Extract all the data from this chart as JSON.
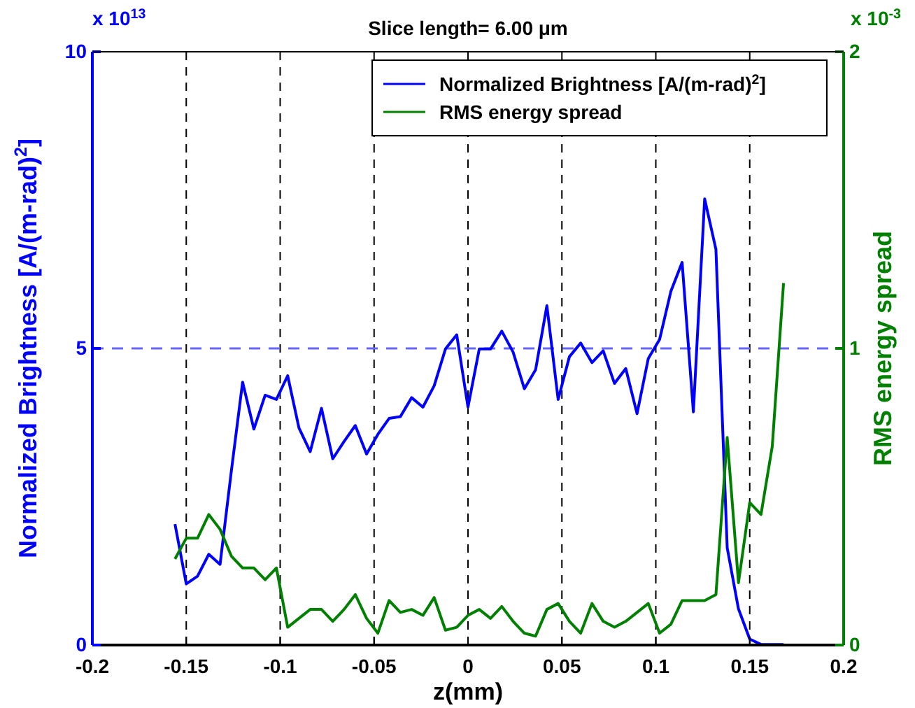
{
  "chart_data": {
    "type": "line",
    "title": "Slice length=  6.00 μm",
    "xlabel": "z(mm)",
    "ylabel": "Normalized Brightness [A/(m-rad)$^{2}$]",
    "y2label": "RMS energy spread",
    "annotations": [
      "x 10$^{13}$",
      "x 10$^{-3}$"
    ],
    "x": [
      -0.156,
      -0.15,
      -0.144,
      -0.138,
      -0.132,
      -0.126,
      -0.12,
      -0.114,
      -0.108,
      -0.102,
      -0.096,
      -0.09,
      -0.084,
      -0.078,
      -0.072,
      -0.066,
      -0.06,
      -0.054,
      -0.048,
      -0.042,
      -0.036,
      -0.03,
      -0.024,
      -0.018,
      -0.012,
      -0.006,
      0,
      0.006,
      0.012,
      0.018,
      0.024,
      0.03,
      0.036,
      0.042,
      0.048,
      0.054,
      0.06,
      0.066,
      0.072,
      0.078,
      0.084,
      0.09,
      0.096,
      0.102,
      0.108,
      0.114,
      0.12,
      0.126,
      0.132,
      0.138,
      0.144,
      0.15,
      0.156,
      0.162,
      0.168
    ],
    "series": [
      {
        "name": "Normalized Brightness [A/(m-rad)$^{2}$]",
        "color": "#0000ff",
        "values": [
          2.04,
          1.03,
          1.16,
          1.53,
          1.36,
          2.93,
          4.43,
          3.64,
          4.21,
          4.14,
          4.54,
          3.66,
          3.26,
          3.99,
          3.14,
          3.43,
          3.7,
          3.22,
          3.55,
          3.82,
          3.85,
          4.17,
          4.01,
          4.37,
          4.99,
          5.23,
          4.01,
          4.99,
          4.99,
          5.29,
          4.94,
          4.32,
          4.64,
          5.72,
          4.14,
          4.86,
          5.09,
          4.76,
          4.96,
          4.41,
          4.66,
          3.9,
          4.83,
          5.15,
          5.96,
          6.45,
          3.93,
          7.52,
          6.67,
          1.64,
          0.61,
          0.1,
          0.01,
          0.01,
          0.01
        ]
      },
      {
        "name": "RMS energy spread",
        "color": "#008000",
        "axis": "y2",
        "values": [
          0.29,
          0.36,
          0.36,
          0.44,
          0.39,
          0.3,
          0.26,
          0.26,
          0.22,
          0.26,
          0.06,
          0.09,
          0.12,
          0.12,
          0.08,
          0.12,
          0.17,
          0.09,
          0.04,
          0.15,
          0.11,
          0.12,
          0.1,
          0.16,
          0.05,
          0.06,
          0.1,
          0.12,
          0.09,
          0.13,
          0.08,
          0.04,
          0.03,
          0.12,
          0.14,
          0.08,
          0.04,
          0.14,
          0.08,
          0.06,
          0.08,
          0.11,
          0.14,
          0.04,
          0.07,
          0.15,
          0.15,
          0.15,
          0.17,
          0.7,
          0.21,
          0.48,
          0.44,
          0.67,
          1.22
        ]
      }
    ],
    "xlim": [
      -0.2,
      0.2
    ],
    "xticks": [
      -0.2,
      -0.15,
      -0.1,
      -0.05,
      0,
      0.05,
      0.1,
      0.15,
      0.2
    ],
    "ylim": [
      0,
      10
    ],
    "yticks": [
      0,
      5,
      10
    ],
    "y2lim": [
      0,
      2
    ],
    "y2ticks": [
      0,
      1,
      2
    ],
    "grid": "x",
    "legend": "top right",
    "line_style": "solid",
    "ref_lines": [
      {
        "axis": "y",
        "value": 5,
        "color": "#6666ff",
        "line_style": "dashed"
      }
    ]
  }
}
